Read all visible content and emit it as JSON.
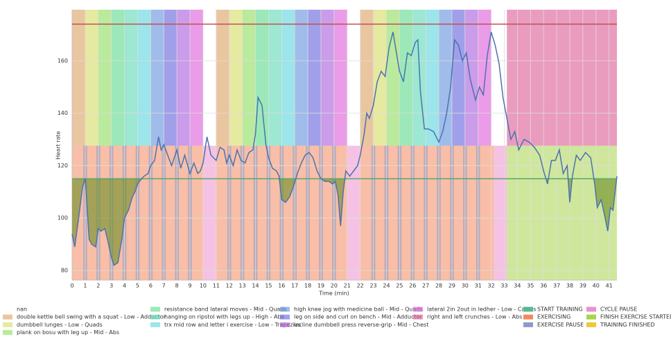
{
  "chart_data": {
    "type": "line",
    "xlabel": "Time (min)",
    "ylabel": "Heart rate",
    "xlim": [
      0,
      41.6
    ],
    "ylim": [
      76.3,
      179.5
    ],
    "xticks": [
      0,
      1,
      2,
      3,
      4,
      5,
      6,
      7,
      8,
      9,
      10,
      11,
      12,
      13,
      14,
      15,
      16,
      17,
      18,
      19,
      20,
      21,
      22,
      23,
      24,
      25,
      26,
      27,
      28,
      29,
      30,
      31,
      32,
      33,
      34,
      35,
      36,
      37,
      38,
      39,
      40,
      41
    ],
    "yticks": [
      80,
      100,
      120,
      140,
      160
    ],
    "grid": true,
    "line_color": "#4c72b0",
    "upper_band_from": 127.6,
    "thresholds": [
      {
        "value": 174,
        "color": "#c44e52"
      },
      {
        "value": 115,
        "color": "#55a868"
      }
    ],
    "below_fill_color": "#6b8e23",
    "x": [
      0,
      0.2,
      0.5,
      0.8,
      1.0,
      1.1,
      1.3,
      1.5,
      1.8,
      2.0,
      2.2,
      2.5,
      2.7,
      3.0,
      3.2,
      3.5,
      3.8,
      4.0,
      4.3,
      4.6,
      4.8,
      5.0,
      5.3,
      5.5,
      5.8,
      6.0,
      6.3,
      6.6,
      6.8,
      7.0,
      7.3,
      7.6,
      8.0,
      8.3,
      8.6,
      9.0,
      9.3,
      9.6,
      9.8,
      10.0,
      10.3,
      10.6,
      11.0,
      11.3,
      11.6,
      11.8,
      12.0,
      12.3,
      12.6,
      12.9,
      13.2,
      13.5,
      13.8,
      14.0,
      14.2,
      14.5,
      14.8,
      15.0,
      15.3,
      15.6,
      15.8,
      16.0,
      16.3,
      16.6,
      16.9,
      17.2,
      17.5,
      17.8,
      18.1,
      18.4,
      18.7,
      19.0,
      19.3,
      19.6,
      19.9,
      20.1,
      20.3,
      20.5,
      20.7,
      20.9,
      21.2,
      21.5,
      21.8,
      22.0,
      22.3,
      22.5,
      22.7,
      23.0,
      23.3,
      23.6,
      23.9,
      24.2,
      24.5,
      24.8,
      25.0,
      25.3,
      25.6,
      25.9,
      26.2,
      26.4,
      26.6,
      26.9,
      27.2,
      27.6,
      28.0,
      28.3,
      28.6,
      28.9,
      29.2,
      29.5,
      29.8,
      30.1,
      30.4,
      30.8,
      31.1,
      31.4,
      31.7,
      32.0,
      32.3,
      32.6,
      32.9,
      33.2,
      33.5,
      33.8,
      34.1,
      34.5,
      34.9,
      35.3,
      35.7,
      36.0,
      36.3,
      36.6,
      36.9,
      37.2,
      37.5,
      37.8,
      38.0,
      38.2,
      38.5,
      38.8,
      39.2,
      39.6,
      39.9,
      40.1,
      40.4,
      40.7,
      40.9,
      41.1,
      41.3,
      41.6
    ],
    "values": [
      94,
      89,
      100,
      112,
      115,
      108,
      92,
      90,
      89,
      96,
      95,
      96,
      92,
      85,
      82,
      83,
      92,
      100,
      103,
      108,
      110,
      113,
      115,
      116,
      117,
      120,
      122,
      131,
      126,
      128,
      124,
      120,
      126,
      119,
      124,
      117,
      121,
      117,
      118,
      121,
      131,
      124,
      122,
      127,
      126,
      121,
      124,
      120,
      126,
      122,
      121,
      125,
      126,
      132,
      146,
      143,
      128,
      123,
      119,
      118,
      116,
      107,
      106,
      108,
      112,
      117,
      121,
      124,
      125,
      123,
      118,
      115,
      114,
      114,
      113,
      114,
      109,
      97,
      110,
      118,
      116,
      118,
      120,
      124,
      132,
      140,
      138,
      143,
      152,
      156,
      154,
      165,
      171,
      162,
      156,
      152,
      163,
      162,
      167,
      168,
      148,
      134,
      134,
      133,
      129,
      133,
      140,
      150,
      168,
      166,
      160,
      163,
      153,
      145,
      150,
      147,
      162,
      171,
      166,
      159,
      146,
      138,
      130,
      133,
      126,
      130,
      129,
      127,
      124,
      118,
      113,
      122,
      122,
      126,
      117,
      120,
      106,
      116,
      124,
      122,
      125,
      123,
      113,
      104,
      107,
      100,
      95,
      104,
      103,
      116
    ],
    "exercises": [
      {
        "name": "nan",
        "color": "#ffffff"
      },
      {
        "name": "double kettle bell  swing with a squat - Low -  Adductor",
        "color": "#dca060"
      },
      {
        "name": "dumbbell lunges - Low -  Quads",
        "color": "#d4dc60"
      },
      {
        "name": "plank on bosu with leg up - Mid -  Abs",
        "color": "#8cdc5a"
      },
      {
        "name": "resistance band lateral moves - Mid -  Quads",
        "color": "#5ad888"
      },
      {
        "name": "hanging on ripstol with legs up - High -  Abs",
        "color": "#5ad8b4"
      },
      {
        "name": "trx mid row and letter i exercise - Low -  Trapezius",
        "color": "#5ad4dc"
      },
      {
        "name": "high knee jog with medicine ball - Mid -  Quads",
        "color": "#6090dc"
      },
      {
        "name": "leg on side and curl on bench - Mid -  Adductor",
        "color": "#6060dc"
      },
      {
        "name": "incline dumbbell press reverse-grip  - Mid -  Chest",
        "color": "#a85adc"
      },
      {
        "name": "lateral 2in 2out in ledher - Low -  Calves",
        "color": "#dc5ad8"
      },
      {
        "name": "right and left crunches - Low -  Abs",
        "color": "#dc5a94"
      }
    ],
    "phases": [
      {
        "name": "START TRAINING",
        "color": "#5ab890"
      },
      {
        "name": "EXERCISING",
        "color": "#f4885e"
      },
      {
        "name": "EXERCISE PAUSE",
        "color": "#8c9cc8"
      },
      {
        "name": "CYCLE PAUSE",
        "color": "#ec90cc"
      },
      {
        "name": "FINISH EXERCISE STARTED",
        "color": "#a8d44c"
      },
      {
        "name": "TRAINING FINISHED",
        "color": "#ecc83c"
      }
    ],
    "exercise_spans": [
      [
        0,
        1,
        1
      ],
      [
        1,
        2,
        2
      ],
      [
        2,
        3,
        3
      ],
      [
        3,
        4,
        4
      ],
      [
        4,
        5,
        5
      ],
      [
        5,
        6,
        6
      ],
      [
        6,
        7,
        7
      ],
      [
        7,
        8,
        8
      ],
      [
        8,
        9,
        9
      ],
      [
        9,
        10,
        10
      ],
      [
        11,
        12,
        1
      ],
      [
        12,
        13,
        2
      ],
      [
        13,
        14,
        3
      ],
      [
        14,
        15,
        4
      ],
      [
        15,
        16,
        5
      ],
      [
        16,
        17,
        6
      ],
      [
        17,
        18,
        7
      ],
      [
        18,
        19,
        8
      ],
      [
        19,
        20,
        9
      ],
      [
        20,
        21,
        10
      ],
      [
        22,
        23,
        1
      ],
      [
        23,
        24,
        2
      ],
      [
        24,
        25,
        3
      ],
      [
        25,
        26,
        4
      ],
      [
        26,
        27,
        5
      ],
      [
        27,
        28,
        6
      ],
      [
        28,
        29,
        7
      ],
      [
        29,
        30,
        8
      ],
      [
        30,
        31,
        9
      ],
      [
        31,
        32,
        10
      ],
      [
        33.2,
        41.6,
        11
      ]
    ],
    "phase_spans": [
      [
        0,
        10,
        1
      ],
      [
        10,
        11,
        3
      ],
      [
        11,
        21,
        1
      ],
      [
        21,
        22,
        3
      ],
      [
        22,
        32.2,
        1
      ],
      [
        32.2,
        33.2,
        3
      ],
      [
        33.2,
        41.6,
        4
      ],
      [
        0.85,
        1.15,
        2
      ],
      [
        1.85,
        2.15,
        2
      ],
      [
        2.85,
        3.15,
        2
      ],
      [
        3.85,
        4.15,
        2
      ],
      [
        4.85,
        5.15,
        2
      ],
      [
        5.85,
        6.15,
        2
      ],
      [
        6.85,
        7.15,
        2
      ],
      [
        7.85,
        8.15,
        2
      ],
      [
        8.85,
        9.15,
        2
      ],
      [
        11.85,
        12.15,
        2
      ],
      [
        12.85,
        13.15,
        2
      ],
      [
        13.85,
        14.15,
        2
      ],
      [
        14.85,
        15.15,
        2
      ],
      [
        15.85,
        16.15,
        2
      ],
      [
        16.85,
        17.15,
        2
      ],
      [
        17.85,
        18.15,
        2
      ],
      [
        18.85,
        19.15,
        2
      ],
      [
        19.85,
        20.15,
        2
      ],
      [
        22.85,
        23.15,
        2
      ],
      [
        23.85,
        24.15,
        2
      ],
      [
        24.85,
        25.15,
        2
      ],
      [
        25.85,
        26.15,
        2
      ],
      [
        26.85,
        27.15,
        2
      ],
      [
        27.85,
        28.15,
        2
      ],
      [
        28.85,
        29.15,
        2
      ],
      [
        29.85,
        30.15,
        2
      ],
      [
        30.85,
        31.15,
        2
      ]
    ]
  }
}
